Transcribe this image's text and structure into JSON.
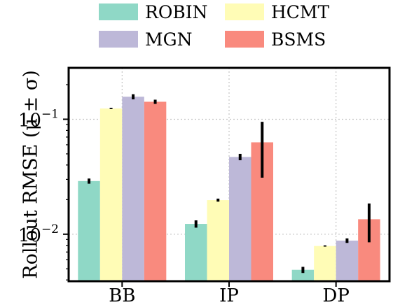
{
  "chart_data": {
    "type": "bar",
    "categories": [
      "BB",
      "IP",
      "DP"
    ],
    "ylabel": "Rollout RMSE (μ ± σ)",
    "yscale": "log",
    "ylim": [
      0.0039,
      0.28
    ],
    "yticks": [
      {
        "value": 0.1,
        "base": "10",
        "exponent": "−1"
      },
      {
        "value": 0.01,
        "base": "10",
        "exponent": "−2"
      }
    ],
    "grid": true,
    "legend_position": "top",
    "series": [
      {
        "name": "ROBIN",
        "color": "#8fd8c6",
        "values": [
          0.029,
          0.0123,
          0.0049
        ],
        "errors": [
          0.0015,
          0.0009,
          0.0003
        ]
      },
      {
        "name": "HCMT",
        "color": "#fffcb6",
        "values": [
          0.124,
          0.0198,
          0.0079
        ],
        "errors": [
          0.0015,
          0.0006,
          0.0001
        ]
      },
      {
        "name": "MGN",
        "color": "#bdb8d8",
        "values": [
          0.157,
          0.047,
          0.0088
        ],
        "errors": [
          0.008,
          0.003,
          0.0004
        ]
      },
      {
        "name": "BSMS",
        "color": "#f98a7e",
        "values": [
          0.142,
          0.063,
          0.0135
        ],
        "errors": [
          0.006,
          0.032,
          0.005
        ]
      }
    ]
  }
}
